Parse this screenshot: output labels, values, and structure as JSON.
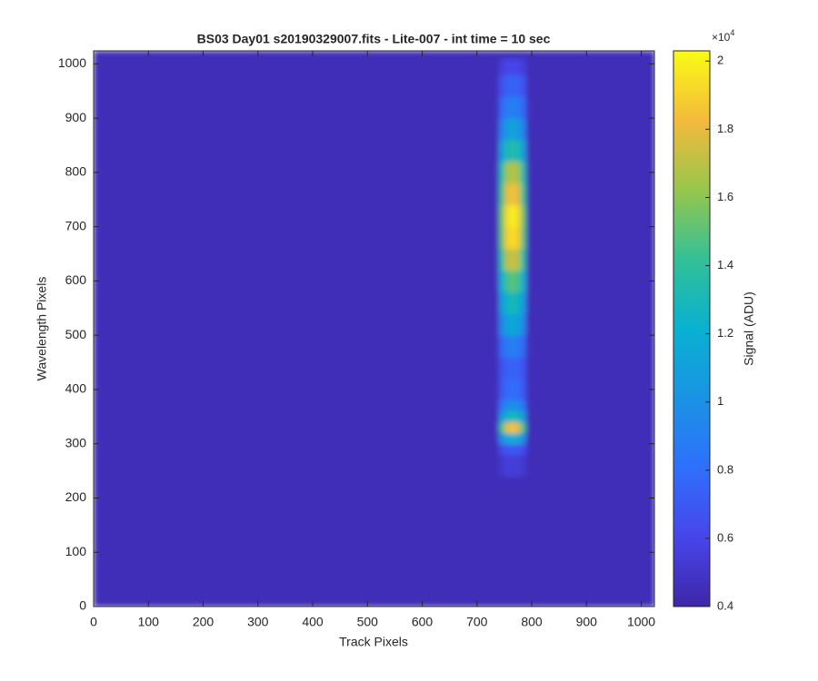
{
  "chart_data": {
    "type": "heatmap",
    "title": "BS03 Day01  s20190329007.fits - Lite-007 - int time = 10 sec",
    "x_label": "Track Pixels",
    "y_label": "Wavelength Pixels",
    "colorbar_label": "Signal (ADU)",
    "colorbar_exponent": {
      "base": "×10",
      "power": "4"
    },
    "colormap": "parula",
    "x_edges": [
      0,
      740,
      750,
      760,
      770,
      780,
      790,
      1024
    ],
    "y_edges": [
      0,
      240,
      280,
      300,
      320,
      340,
      360,
      380,
      420,
      460,
      500,
      540,
      580,
      620,
      660,
      700,
      740,
      780,
      820,
      860,
      900,
      940,
      980,
      1010,
      1024
    ],
    "values": [
      [
        4500,
        4500,
        4500,
        4500,
        4500,
        4500,
        4500
      ],
      [
        4500,
        5200,
        5450,
        5500,
        5450,
        5200,
        4500
      ],
      [
        4500,
        6250,
        6875,
        7000,
        6875,
        6250,
        4500
      ],
      [
        4500,
        9750,
        11625,
        12000,
        11625,
        9750,
        4500
      ],
      [
        4500,
        14300,
        17800,
        18500,
        17800,
        14300,
        4500
      ],
      [
        4500,
        10450,
        12575,
        13000,
        12575,
        10450,
        4500
      ],
      [
        4500,
        8350,
        9725,
        10000,
        9725,
        8350,
        4500
      ],
      [
        4500,
        6950,
        7825,
        8000,
        7825,
        6950,
        4500
      ],
      [
        4500,
        6600,
        7350,
        7500,
        7350,
        6600,
        4500
      ],
      [
        4500,
        7650,
        8775,
        9000,
        8775,
        7650,
        4500
      ],
      [
        4500,
        9400,
        11150,
        11500,
        11150,
        9400,
        4500
      ],
      [
        4500,
        10450,
        12575,
        13000,
        12575,
        10450,
        4500
      ],
      [
        4500,
        11850,
        14475,
        15000,
        14475,
        11850,
        4500
      ],
      [
        4500,
        13600,
        16850,
        17500,
        16850,
        13600,
        4500
      ],
      [
        4500,
        15000,
        18750,
        19500,
        18750,
        15000,
        4500
      ],
      [
        4500,
        15350,
        19225,
        20000,
        19225,
        15350,
        4500
      ],
      [
        4500,
        14300,
        17800,
        18500,
        17800,
        14300,
        4500
      ],
      [
        4500,
        13250,
        16375,
        17000,
        16375,
        13250,
        4500
      ],
      [
        4500,
        10800,
        13050,
        13500,
        13050,
        10800,
        4500
      ],
      [
        4500,
        9050,
        10675,
        11000,
        10675,
        9050,
        4500
      ],
      [
        4500,
        7650,
        8775,
        9000,
        8775,
        7650,
        4500
      ],
      [
        4500,
        6600,
        7350,
        7500,
        7350,
        6600,
        4500
      ],
      [
        4500,
        5550,
        5925,
        6000,
        5925,
        5550,
        4500
      ],
      [
        4500,
        4500,
        4500,
        4500,
        4500,
        4500,
        4500
      ]
    ],
    "xlim": [
      0,
      1024
    ],
    "ylim": [
      0,
      1024
    ],
    "xticks": [
      0,
      100,
      200,
      300,
      400,
      500,
      600,
      700,
      800,
      900,
      1000
    ],
    "yticks": [
      0,
      100,
      200,
      300,
      400,
      500,
      600,
      700,
      800,
      900,
      1000
    ],
    "clim": [
      4000,
      20300
    ],
    "cticks": [
      {
        "value": 4000,
        "label": "0.4"
      },
      {
        "value": 6000,
        "label": "0.6"
      },
      {
        "value": 8000,
        "label": "0.8"
      },
      {
        "value": 10000,
        "label": "1"
      },
      {
        "value": 12000,
        "label": "1.2"
      },
      {
        "value": 14000,
        "label": "1.4"
      },
      {
        "value": 16000,
        "label": "1.6"
      },
      {
        "value": 18000,
        "label": "1.8"
      },
      {
        "value": 20000,
        "label": "2"
      }
    ]
  }
}
